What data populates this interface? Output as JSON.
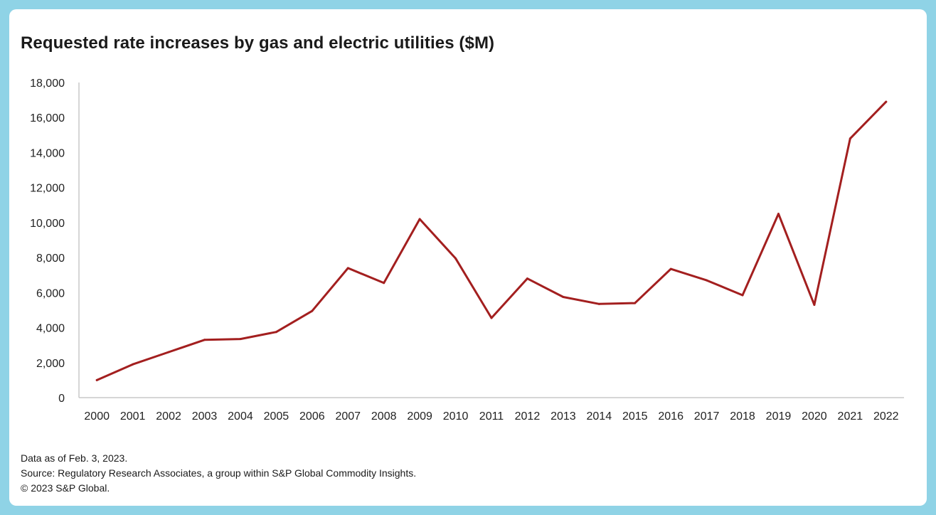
{
  "chart_data": {
    "type": "line",
    "title": "Requested rate increases by gas and electric utilities ($M)",
    "xlabel": "",
    "ylabel": "",
    "ylim": [
      0,
      18000
    ],
    "yticks": [
      0,
      2000,
      4000,
      6000,
      8000,
      10000,
      12000,
      14000,
      16000,
      18000
    ],
    "ytick_labels": [
      "0",
      "2,000",
      "4,000",
      "6,000",
      "8,000",
      "10,000",
      "12,000",
      "14,000",
      "16,000",
      "18,000"
    ],
    "grid": false,
    "legend": "none",
    "categories": [
      "2000",
      "2001",
      "2002",
      "2003",
      "2004",
      "2005",
      "2006",
      "2007",
      "2008",
      "2009",
      "2010",
      "2011",
      "2012",
      "2013",
      "2014",
      "2015",
      "2016",
      "2017",
      "2018",
      "2019",
      "2020",
      "2021",
      "2022"
    ],
    "series": [
      {
        "name": "Requested rate increases",
        "color": "#a31f1f",
        "values": [
          1000,
          1900,
          2600,
          3300,
          3350,
          3750,
          4950,
          7400,
          6550,
          10200,
          7950,
          4550,
          6800,
          5750,
          5350,
          5400,
          7350,
          6700,
          5850,
          10500,
          5300,
          14800,
          16900
        ]
      }
    ]
  },
  "footnotes": {
    "line1": "Data as of Feb. 3, 2023.",
    "line2": "Source: Regulatory Research Associates, a group within S&P Global Commodity Insights.",
    "line3": "© 2023 S&P Global."
  },
  "colors": {
    "border": "#8fd3e6",
    "background": "#ffffff",
    "line": "#a31f1f",
    "axis": "#c8c8c8",
    "text": "#1a1a1a"
  }
}
